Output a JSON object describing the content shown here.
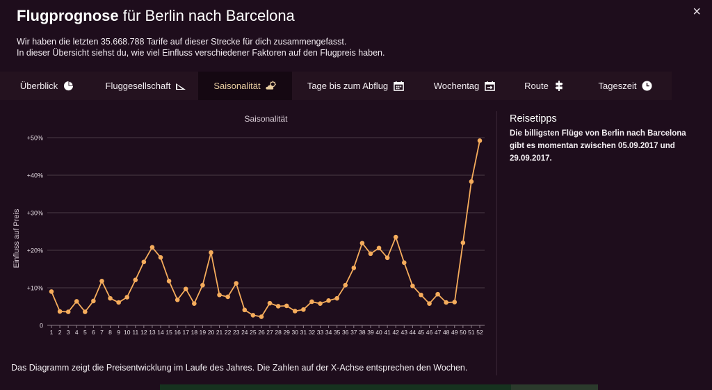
{
  "header": {
    "title_strong": "Flugprognose",
    "title_rest": " für Berlin nach Barcelona",
    "intro_line1": "Wir haben die letzten 35.668.788 Tarife auf dieser Strecke für dich zusammengefasst.",
    "intro_line2": "In dieser Übersicht siehst du, wie viel Einfluss verschiedener Faktoren auf den Flugpreis haben.",
    "close_label": "×"
  },
  "tabs": [
    {
      "label": "Überblick",
      "icon": "pie-chart-icon"
    },
    {
      "label": "Fluggesellschaft",
      "icon": "airplane-tail-icon"
    },
    {
      "label": "Saisonalität",
      "icon": "weather-icon"
    },
    {
      "label": "Tage bis zum Abflug",
      "icon": "calendar-icon"
    },
    {
      "label": "Wochentag",
      "icon": "calendar-arrow-icon"
    },
    {
      "label": "Route",
      "icon": "route-icon"
    },
    {
      "label": "Tageszeit",
      "icon": "clock-icon"
    }
  ],
  "active_tab": 2,
  "tips": {
    "title": "Reisetipps",
    "text": "Die billigsten Flüge von Berlin nach Barcelona gibt es momentan zwischen 05.09.2017 und 29.09.2017."
  },
  "footer_note": "Das Diagramm zeigt die Preisentwicklung im Laufe des Jahres. Die Zahlen auf der X-Achse entsprechen den Wochen.",
  "colors": {
    "background": "#1e0d1c",
    "line": "#f5ac5c",
    "active_tab_text": "#e8cda1",
    "grid": "#4a3a46"
  },
  "chart_data": {
    "type": "line",
    "title": "Saisonalität",
    "xlabel": "",
    "ylabel": "Einfluss auf Preis",
    "x": [
      1,
      2,
      3,
      4,
      5,
      6,
      7,
      8,
      9,
      10,
      11,
      12,
      13,
      14,
      15,
      16,
      17,
      18,
      19,
      20,
      21,
      22,
      23,
      24,
      25,
      26,
      27,
      28,
      29,
      30,
      31,
      32,
      33,
      34,
      35,
      36,
      37,
      38,
      39,
      40,
      41,
      42,
      43,
      44,
      45,
      46,
      47,
      48,
      49,
      50,
      51,
      52
    ],
    "values": [
      9,
      3.7,
      3.6,
      6.4,
      3.6,
      6.5,
      11.8,
      7.2,
      6.1,
      7.5,
      12.1,
      16.9,
      20.8,
      18.1,
      11.8,
      6.8,
      9.7,
      5.8,
      10.7,
      19.4,
      8.1,
      7.6,
      11.2,
      4.1,
      2.7,
      2.3,
      5.9,
      5.1,
      5.2,
      3.8,
      4.2,
      6.3,
      5.8,
      6.6,
      7.2,
      10.7,
      15.3,
      21.9,
      19.1,
      20.6,
      18,
      23.5,
      16.7,
      10.5,
      8.1,
      5.8,
      8.3,
      6.1,
      6.2,
      22,
      38.3,
      49.2
    ],
    "yticks": [
      "0",
      "+10%",
      "+20%",
      "+30%",
      "+40%",
      "+50%"
    ],
    "ylim": [
      0,
      50
    ],
    "grid": true,
    "legend": "none"
  }
}
